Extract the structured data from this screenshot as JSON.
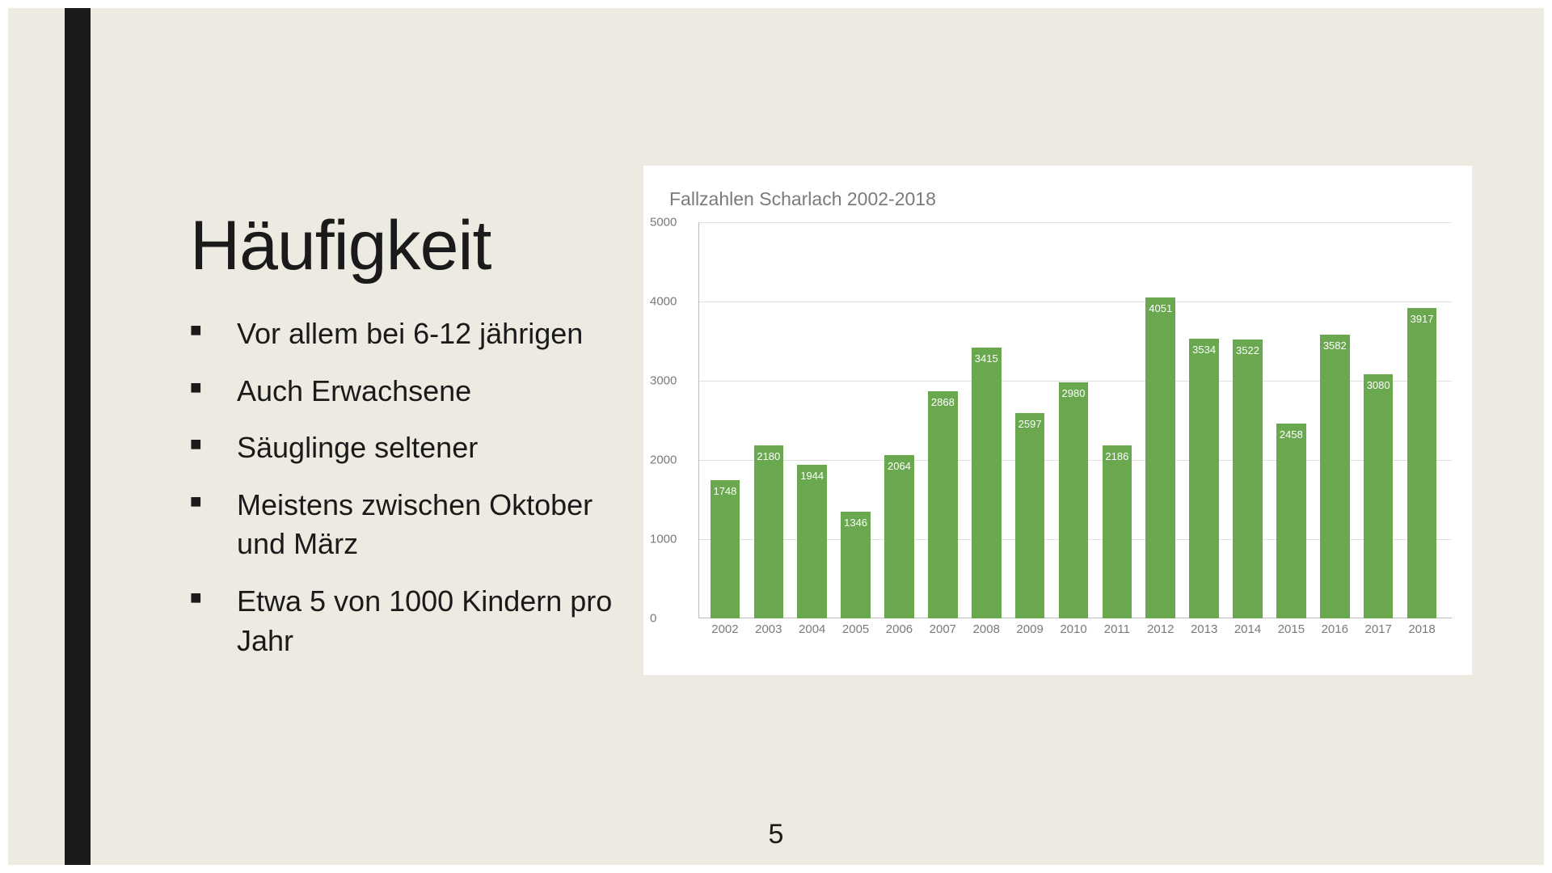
{
  "slide": {
    "title": "Häufigkeit",
    "bullets": [
      "Vor allem bei 6-12 jährigen",
      "Auch Erwachsene",
      "Säuglinge seltener",
      "Meistens zwischen Oktober und März",
      "Etwa 5 von 1000 Kindern pro Jahr"
    ],
    "page_number": "5",
    "background_color": "#edeae1",
    "accent_bar_color": "#1a1a1a"
  },
  "chart": {
    "type": "bar",
    "title": "Fallzahlen Scharlach 2002-2018",
    "title_fontsize": 23,
    "title_color": "#7a7a7a",
    "background_color": "#ffffff",
    "categories": [
      "2002",
      "2003",
      "2004",
      "2005",
      "2006",
      "2007",
      "2008",
      "2009",
      "2010",
      "2011",
      "2012",
      "2013",
      "2014",
      "2015",
      "2016",
      "2017",
      "2018"
    ],
    "values": [
      1748,
      2180,
      1944,
      1346,
      2064,
      2868,
      3415,
      2597,
      2980,
      2186,
      4051,
      3534,
      3522,
      2458,
      3582,
      3080,
      3917
    ],
    "bar_color": "#6aa84f",
    "bar_label_color": "#ffffff",
    "bar_label_fontsize": 13,
    "ylim": [
      0,
      5000
    ],
    "ytick_step": 1000,
    "yticks": [
      0,
      1000,
      2000,
      3000,
      4000,
      5000
    ],
    "x_label_fontsize": 15,
    "axis_color": "#7a7a7a",
    "grid_color": "#e0e0e0",
    "baseline_color": "#bcbcbc",
    "bar_width_ratio": 0.68
  }
}
